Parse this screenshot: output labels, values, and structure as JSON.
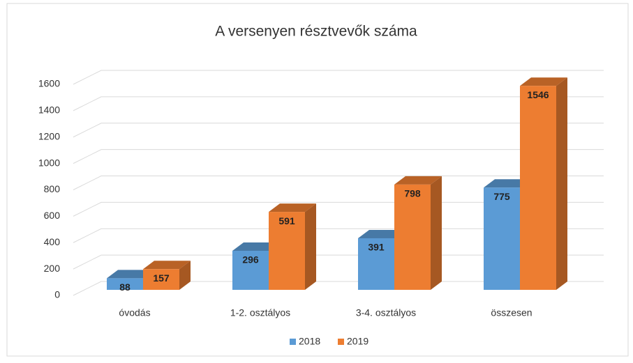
{
  "chart_data": {
    "type": "bar3d",
    "title": "A versenyen résztvevők száma",
    "categories": [
      "óvodás",
      "1-2. osztályos",
      "3-4. osztályos",
      "összesen"
    ],
    "series": [
      {
        "name": "2018",
        "color": "#5b9bd5",
        "values": [
          88,
          296,
          391,
          775
        ]
      },
      {
        "name": "2019",
        "color": "#ed7d31",
        "values": [
          157,
          591,
          798,
          1546
        ]
      }
    ],
    "ylim": [
      0,
      1600
    ],
    "yticks": [
      0,
      200,
      400,
      600,
      800,
      1000,
      1200,
      1400,
      1600
    ],
    "grid": true,
    "legend": "bottom"
  }
}
